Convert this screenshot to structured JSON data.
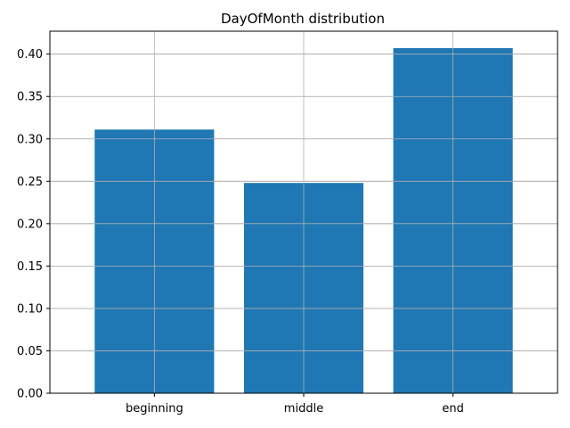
{
  "chart_data": {
    "type": "bar",
    "title": "DayOfMonth distribution",
    "categories": [
      "beginning",
      "middle",
      "end"
    ],
    "values": [
      0.311,
      0.248,
      0.407
    ],
    "xlabel": "",
    "ylabel": "",
    "ylim": [
      0,
      0.427
    ],
    "yticks": [
      "0.00",
      "0.05",
      "0.10",
      "0.15",
      "0.20",
      "0.25",
      "0.30",
      "0.35",
      "0.40"
    ],
    "grid": true,
    "bar_color": "#1f77b4",
    "grid_color": "#b0b0b0"
  }
}
